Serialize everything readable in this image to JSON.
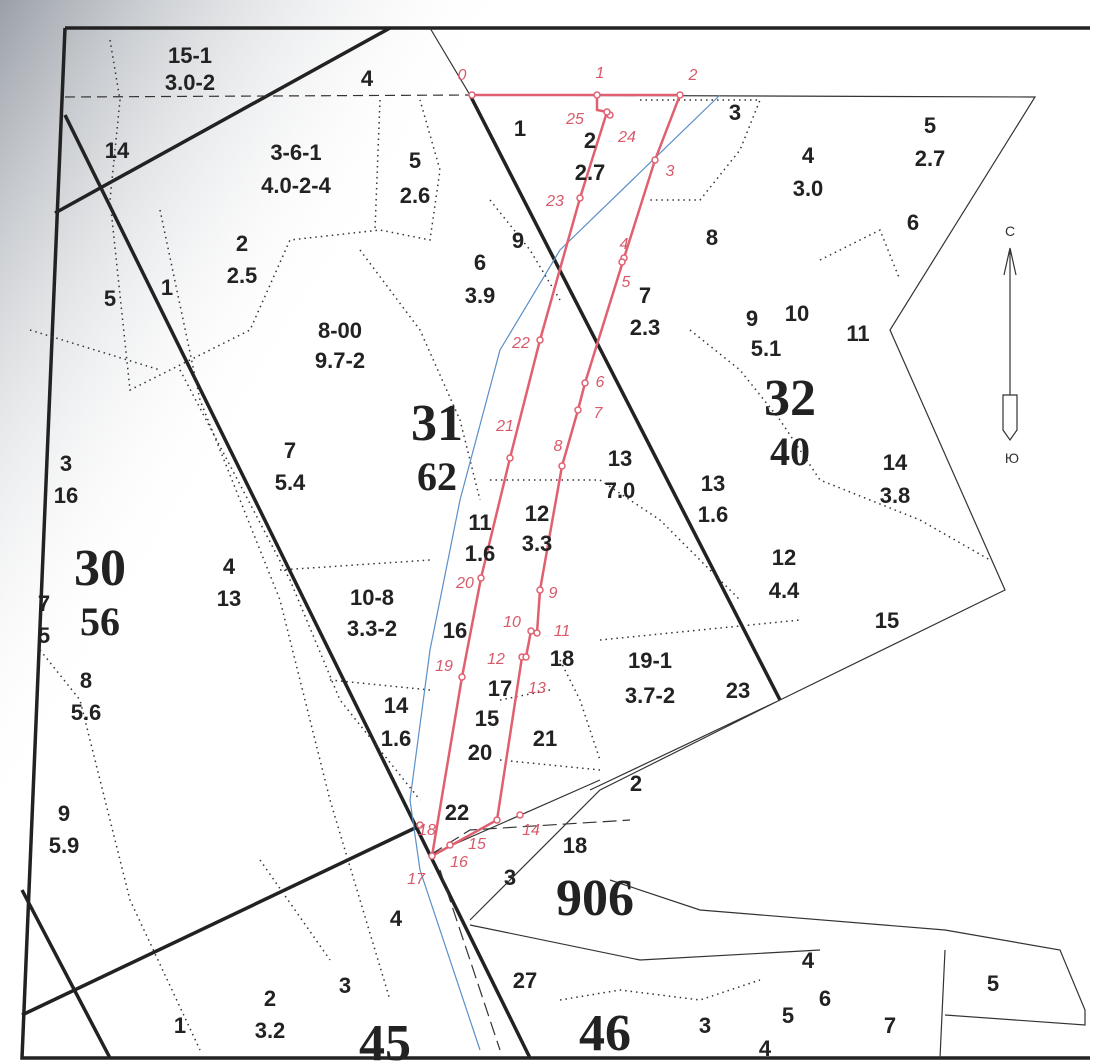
{
  "quarters": [
    {
      "number": "31",
      "area": "62"
    },
    {
      "number": "32",
      "area": "40"
    },
    {
      "number": "30",
      "area": "56"
    },
    {
      "number": "906"
    },
    {
      "number": "45"
    },
    {
      "number": "46"
    }
  ],
  "plots": [
    {
      "number": "15-1",
      "area": "3.0-2"
    },
    {
      "number": "4"
    },
    {
      "number": "14"
    },
    {
      "number": "3-6-1",
      "area": "4.0-2-4"
    },
    {
      "number": "5",
      "area": "2.6"
    },
    {
      "number": "1"
    },
    {
      "number": "2",
      "area": "2.7"
    },
    {
      "number": "3"
    },
    {
      "number": "4",
      "area": "3.0"
    },
    {
      "number": "5",
      "area": "2.7"
    },
    {
      "number": "6"
    },
    {
      "number": "8"
    },
    {
      "number": "9"
    },
    {
      "number": "6",
      "area": "3.9"
    },
    {
      "number": "2",
      "area": "2.5"
    },
    {
      "number": "5"
    },
    {
      "number": "1"
    },
    {
      "number": "8-00",
      "area": "9.7-2"
    },
    {
      "number": "7",
      "area": "2.3"
    },
    {
      "number": "9"
    },
    {
      "number": "10"
    },
    {
      "number": "11"
    },
    {
      "number": "5.1"
    },
    {
      "number": "7",
      "area": "5.4"
    },
    {
      "number": "3",
      "area": "16"
    },
    {
      "number": "13",
      "area": "7.0"
    },
    {
      "number": "13",
      "area": "1.6"
    },
    {
      "number": "14",
      "area": "3.8"
    },
    {
      "number": "11",
      "area": "1.6"
    },
    {
      "number": "12",
      "area": "3.3"
    },
    {
      "number": "4",
      "area": "13"
    },
    {
      "number": "12",
      "area": "4.4"
    },
    {
      "number": "15"
    },
    {
      "number": "7",
      "area": "5"
    },
    {
      "number": "10-8",
      "area": "3.3-2"
    },
    {
      "number": "16"
    },
    {
      "number": "18"
    },
    {
      "number": "19-1",
      "area": "3.7-2"
    },
    {
      "number": "23"
    },
    {
      "number": "17"
    },
    {
      "number": "8",
      "area": "5.6"
    },
    {
      "number": "14",
      "area": "1.6"
    },
    {
      "number": "15"
    },
    {
      "number": "21"
    },
    {
      "number": "20"
    },
    {
      "number": "2"
    },
    {
      "number": "22"
    },
    {
      "number": "18"
    },
    {
      "number": "9",
      "area": "5.9"
    },
    {
      "number": "3"
    },
    {
      "number": "4"
    },
    {
      "number": "27"
    },
    {
      "number": "4"
    },
    {
      "number": "5"
    },
    {
      "number": "6"
    },
    {
      "number": "5"
    },
    {
      "number": "7"
    },
    {
      "number": "3"
    },
    {
      "number": "2",
      "area": "3.2"
    },
    {
      "number": "1"
    },
    {
      "number": "3"
    },
    {
      "number": "4"
    }
  ],
  "survey_points": [
    "0",
    "1",
    "2",
    "3",
    "4",
    "5",
    "6",
    "7",
    "8",
    "9",
    "10",
    "11",
    "12",
    "13",
    "14",
    "15",
    "16",
    "17",
    "18",
    "19",
    "20",
    "21",
    "22",
    "23",
    "24",
    "25"
  ],
  "compass": {
    "north": "С",
    "south": "Ю"
  }
}
